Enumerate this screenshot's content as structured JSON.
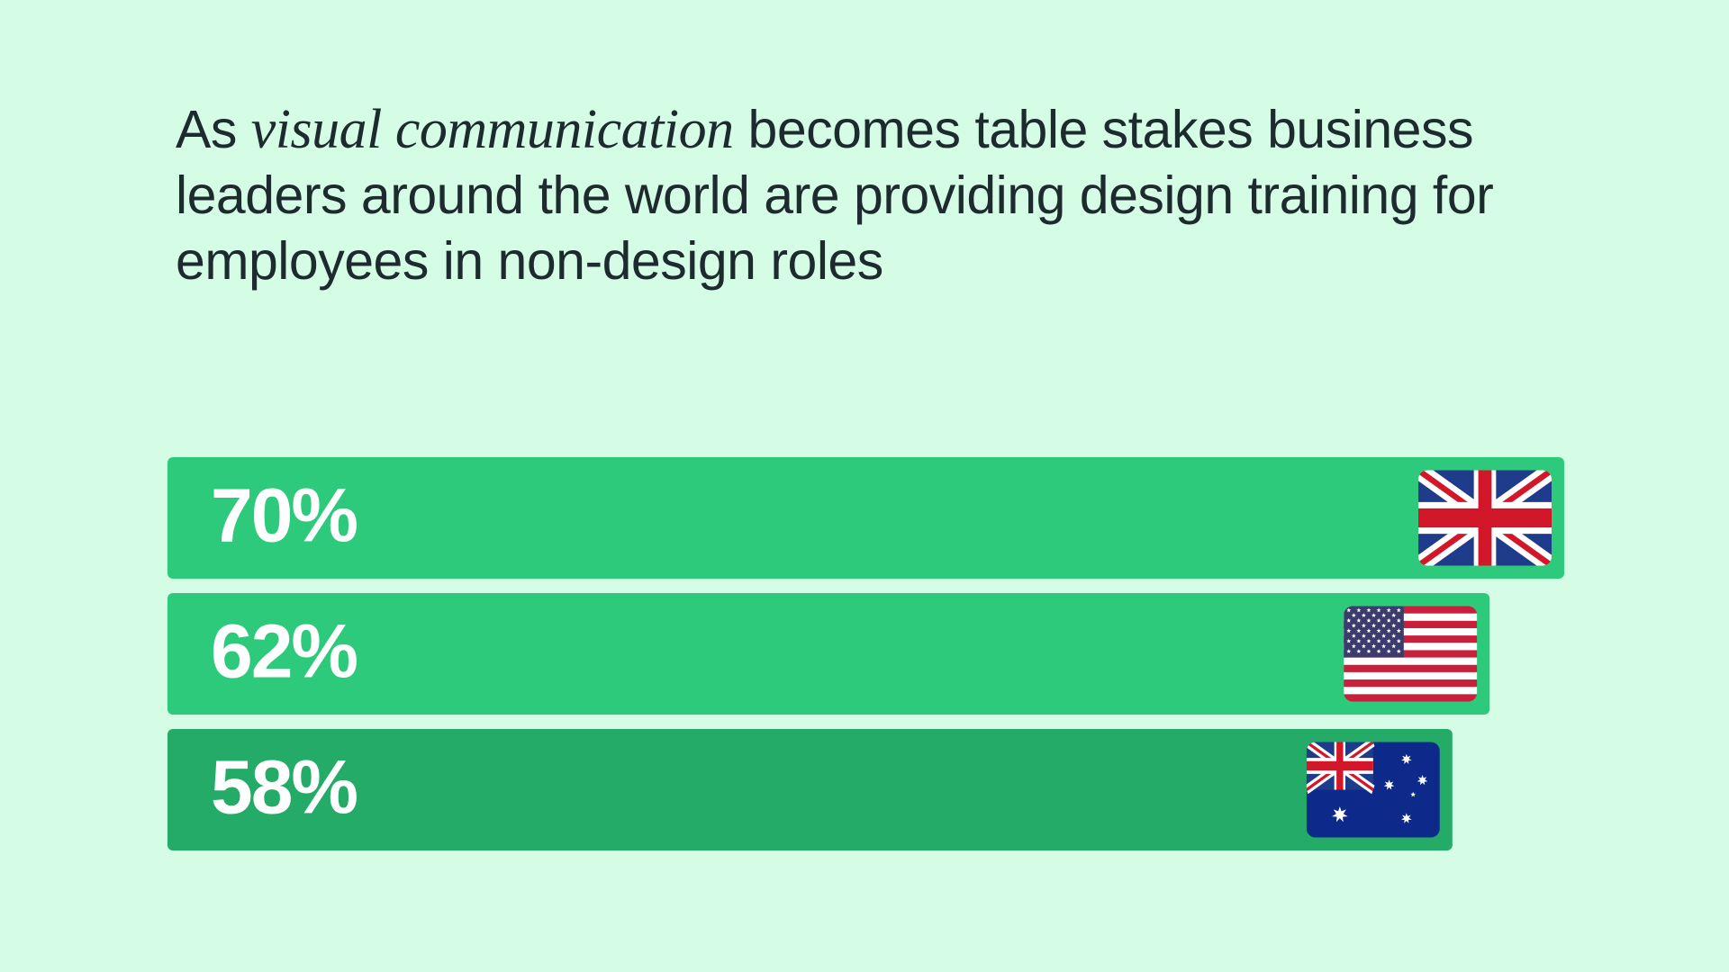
{
  "chart_data": {
    "type": "bar",
    "orientation": "horizontal",
    "title": [
      "As",
      "visual communication",
      "becomes table stakes business leaders around the world are providing design training for employees in non-design roles"
    ],
    "categories": [
      null,
      null,
      null
    ],
    "values": [
      70,
      62,
      58
    ],
    "value_labels": [
      "70%",
      "62%",
      "58%"
    ],
    "colors": [
      "#2dca7b",
      "#2dca7b",
      "#23ab67"
    ]
  }
}
